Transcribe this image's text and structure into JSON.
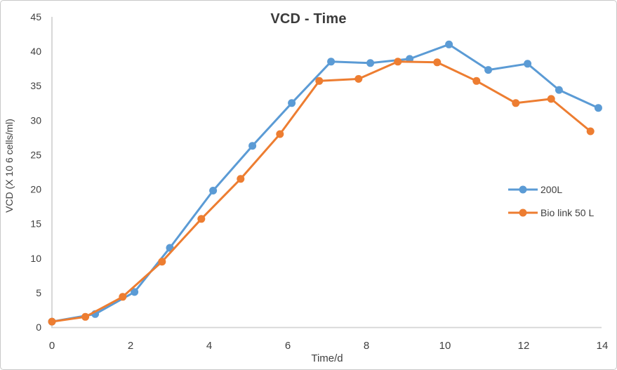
{
  "chart_data": {
    "type": "line",
    "title": "VCD - Time",
    "xlabel": "Time/d",
    "ylabel": "VCD (X 10 6 cells/ml)",
    "xlim": [
      0,
      14
    ],
    "ylim": [
      0,
      45
    ],
    "x_ticks": [
      0,
      2,
      4,
      6,
      8,
      10,
      12,
      14
    ],
    "y_ticks": [
      0,
      5,
      10,
      15,
      20,
      25,
      30,
      35,
      40,
      45
    ],
    "grid": false,
    "legend_position": "right",
    "axis_color": "#d4d4d4",
    "text_color": "#3f3f3f",
    "background": "#ffffff",
    "series": [
      {
        "name": "200L",
        "color": "#5b9bd5",
        "marker": "circle",
        "points": [
          [
            0,
            0.8
          ],
          [
            1.1,
            1.9
          ],
          [
            2.1,
            5.1
          ],
          [
            3.0,
            11.5
          ],
          [
            4.1,
            19.8
          ],
          [
            5.1,
            26.3
          ],
          [
            6.1,
            32.5
          ],
          [
            7.1,
            38.5
          ],
          [
            8.1,
            38.3
          ],
          [
            9.1,
            38.9
          ],
          [
            10.1,
            41.0
          ],
          [
            11.1,
            37.3
          ],
          [
            12.1,
            38.2
          ],
          [
            12.9,
            34.4
          ],
          [
            13.9,
            31.8
          ]
        ]
      },
      {
        "name": "Bio link 50 L",
        "color": "#ed7d31",
        "marker": "circle",
        "points": [
          [
            0,
            0.8
          ],
          [
            0.85,
            1.5
          ],
          [
            1.8,
            4.4
          ],
          [
            2.8,
            9.5
          ],
          [
            3.8,
            15.7
          ],
          [
            4.8,
            21.5
          ],
          [
            5.8,
            28.0
          ],
          [
            6.8,
            35.7
          ],
          [
            7.8,
            36.0
          ],
          [
            8.8,
            38.5
          ],
          [
            9.8,
            38.4
          ],
          [
            10.8,
            35.7
          ],
          [
            11.8,
            32.5
          ],
          [
            12.7,
            33.1
          ],
          [
            13.7,
            28.4
          ]
        ]
      }
    ]
  }
}
